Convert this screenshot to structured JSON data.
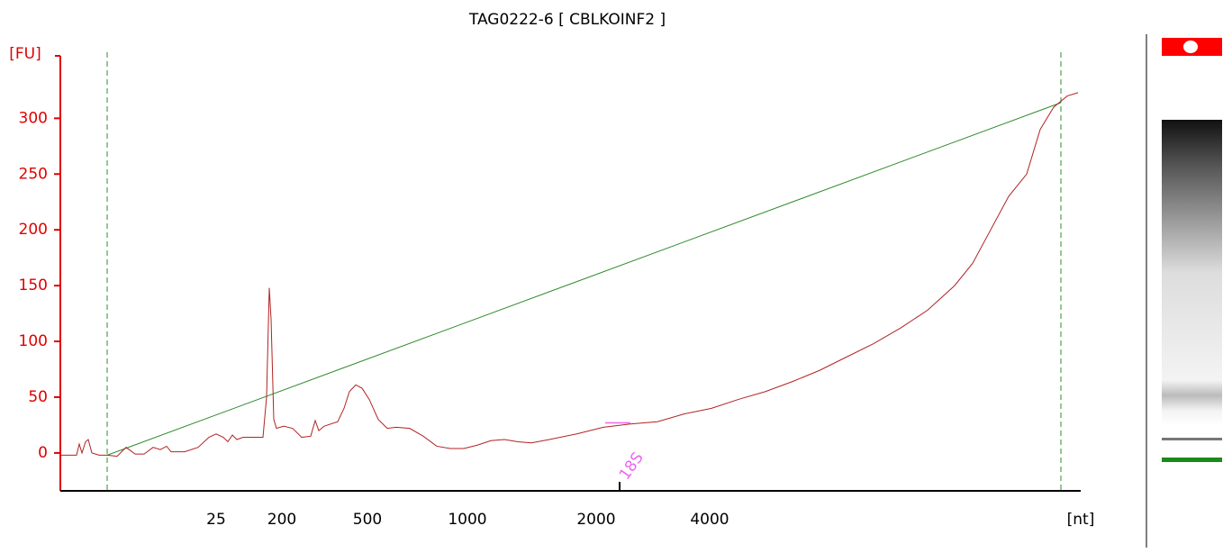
{
  "chart_data": {
    "type": "line",
    "title": "TAG0222-6  [ CBLKOINF2 ]",
    "y_label": "[FU]",
    "x_label": "[nt]",
    "axis_color": "#e00000",
    "xlim": [
      0,
      1133
    ],
    "ylim": [
      -34,
      356
    ],
    "yticks": [
      0,
      50,
      100,
      150,
      200,
      250,
      300
    ],
    "xticks": [
      {
        "value": 173,
        "label": "25"
      },
      {
        "value": 246,
        "label": "200"
      },
      {
        "value": 341,
        "label": "500"
      },
      {
        "value": 452,
        "label": "1000"
      },
      {
        "value": 595,
        "label": "2000"
      },
      {
        "value": 721,
        "label": "4000"
      }
    ],
    "x": [
      0,
      18,
      21,
      24,
      28,
      31,
      35,
      43,
      52,
      63,
      73,
      78,
      83,
      93,
      103,
      111,
      118,
      123,
      138,
      153,
      165,
      173,
      181,
      186,
      191,
      196,
      203,
      218,
      225,
      229,
      232,
      234,
      237,
      240,
      248,
      258,
      268,
      278,
      283,
      287,
      293,
      308,
      315,
      321,
      328,
      335,
      343,
      353,
      363,
      373,
      388,
      403,
      418,
      433,
      448,
      463,
      478,
      493,
      508,
      523,
      543,
      573,
      603,
      633,
      663,
      693,
      723,
      753,
      783,
      813,
      843,
      873,
      903,
      933,
      963,
      993,
      1013,
      1033,
      1053,
      1073,
      1088,
      1103,
      1118,
      1130
    ],
    "series": [
      {
        "color": "#b22222",
        "values": [
          -2,
          -2,
          8,
          0,
          10,
          12,
          0,
          -2,
          -2,
          -3,
          5,
          2,
          -1,
          -1,
          5,
          3,
          6,
          1,
          1,
          5,
          14,
          17,
          14,
          10,
          16,
          12,
          14,
          14,
          14,
          50,
          148,
          120,
          30,
          22,
          24,
          22,
          14,
          15,
          29,
          20,
          24,
          28,
          40,
          55,
          61,
          58,
          48,
          30,
          22,
          23,
          22,
          15,
          6,
          4,
          4,
          7,
          11,
          12,
          10,
          9,
          12,
          17,
          23,
          26,
          28,
          35,
          40,
          48,
          55,
          64,
          74,
          86,
          98,
          112,
          128,
          150,
          170,
          200,
          230,
          250,
          290,
          310,
          320,
          323
        ]
      }
    ],
    "baseline": {
      "x": [
        52,
        1111
      ],
      "values": [
        -2,
        314
      ],
      "color": "#2e8b2e"
    },
    "window_x": [
      52,
      1111
    ],
    "window_color": "#2e8b2e",
    "marker": {
      "label": "18S",
      "x": 621,
      "color": "#ee66ee",
      "segment_x": [
        605,
        633
      ],
      "segment_values": [
        27,
        27
      ]
    }
  }
}
